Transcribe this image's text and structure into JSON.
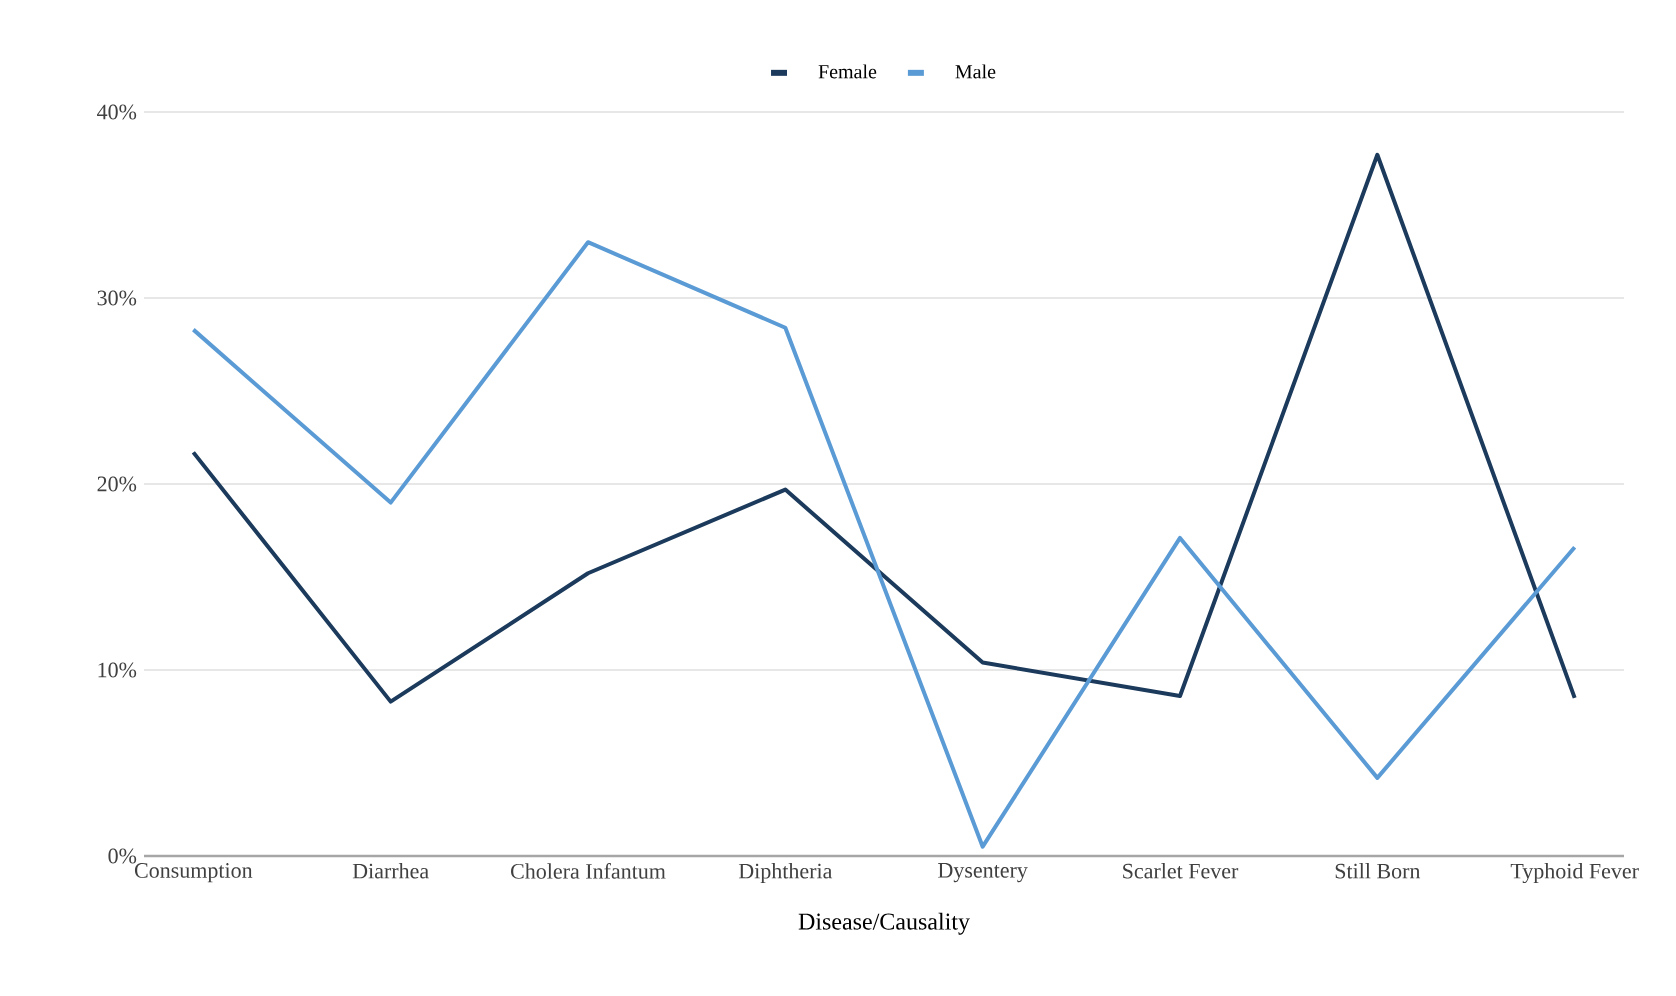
{
  "chart_data": {
    "type": "line",
    "xlabel": "Disease/Causality",
    "categories": [
      "Consumption",
      "Diarrhea",
      "Cholera Infantum",
      "Diphtheria",
      "Dysentery",
      "Scarlet Fever",
      "Still Born",
      "Typhoid Fever"
    ],
    "series": [
      {
        "name": "Female",
        "color": "#1b3a5c",
        "values": [
          21.7,
          8.3,
          15.2,
          19.7,
          10.4,
          8.6,
          37.7,
          8.5
        ]
      },
      {
        "name": "Male",
        "color": "#5b9bd5",
        "values": [
          28.3,
          19.0,
          33.0,
          28.4,
          0.5,
          17.1,
          4.2,
          16.6
        ]
      }
    ],
    "ylim": [
      0,
      40
    ],
    "yticks": [
      {
        "value": 0,
        "label": "0%"
      },
      {
        "value": 10,
        "label": "10%"
      },
      {
        "value": 20,
        "label": "20%"
      },
      {
        "value": 30,
        "label": "30%"
      },
      {
        "value": 40,
        "label": "40%"
      }
    ],
    "grid": "y",
    "legend": "top",
    "marker": "none",
    "line_style": "solid"
  }
}
